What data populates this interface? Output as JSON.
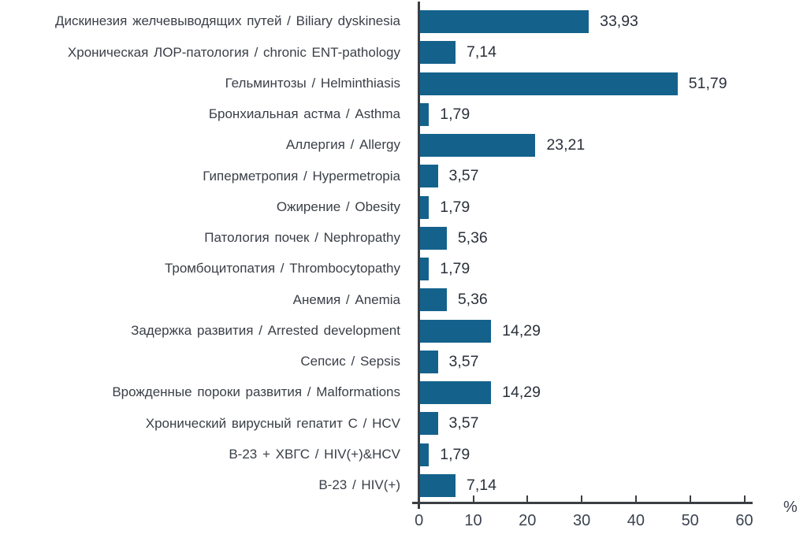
{
  "chart_data": {
    "type": "bar",
    "orientation": "horizontal",
    "title": "",
    "xlabel": "%",
    "ylabel": "",
    "xlim": [
      0,
      61.5
    ],
    "x_ticks": [
      0,
      10,
      20,
      30,
      40,
      50,
      60
    ],
    "grid": false,
    "legend": false,
    "bar_color": "#14628c",
    "axis_color": "#3b3f43",
    "categories": [
      "Дискинезия желчевыводящих путей / Biliary dyskinesia",
      "Хроническая ЛОР-патология / chronic ENT-pathology",
      "Гельминтозы / Helminthiasis",
      "Бронхиальная астма / Asthma",
      "Аллергия / Allergy",
      "Гиперметропия / Hypermetropia",
      "Ожирение / Obesity",
      "Патология почек / Nephropathy",
      "Тромбоцитопатия / Thrombocytopathy",
      "Анемия / Anemia",
      "Задержка развития / Arrested development",
      "Сепсис / Sepsis",
      "Врожденные пороки развития / Malformations",
      "Хронический вирусный гепатит С / HCV",
      "В-23 + ХВГС / HIV(+)&HCV",
      "В-23 / HIV(+)"
    ],
    "values": [
      33.93,
      7.14,
      51.79,
      1.79,
      23.21,
      3.57,
      1.79,
      5.36,
      1.79,
      5.36,
      14.29,
      3.57,
      14.29,
      3.57,
      1.79,
      7.14
    ],
    "value_labels": [
      "33,93",
      "7,14",
      "51,79",
      "1,79",
      "23,21",
      "3,57",
      "1,79",
      "5,36",
      "1,79",
      "5,36",
      "14,29",
      "3,57",
      "14,29",
      "3,57",
      "1,79",
      "7,14"
    ]
  }
}
